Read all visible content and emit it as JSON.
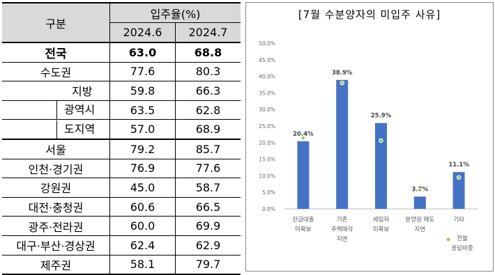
{
  "table": {
    "header": {
      "group": "구분",
      "rate": "입주율(%)",
      "col1": "2024.6",
      "col2": "2024.7"
    },
    "rows": [
      [
        "전국",
        "63.0",
        "68.8"
      ],
      [
        "수도권",
        "77.6",
        "80.3"
      ],
      [
        "지방",
        "59.8",
        "66.3"
      ],
      [
        "광역시",
        "63.5",
        "62.8"
      ],
      [
        "도지역",
        "57.0",
        "68.9"
      ],
      [
        "서울",
        "79.2",
        "85.7"
      ],
      [
        "인천·경기권",
        "76.9",
        "77.6"
      ],
      [
        "강원권",
        "45.0",
        "58.7"
      ],
      [
        "대전·충청권",
        "60.6",
        "66.5"
      ],
      [
        "광주·전라권",
        "60.0",
        "69.9"
      ],
      [
        "대구·부산·경상권",
        "62.4",
        "62.9"
      ],
      [
        "제주권",
        "58.1",
        "79.7"
      ]
    ]
  },
  "chart_data": {
    "type": "bar",
    "title": "[7월 수분양자의 미입주 사유]",
    "categories": [
      "잔금대출\n미확보",
      "기존\n주택매각\n지연",
      "세입자\n미확보",
      "분양권 매도\n지연",
      "기타"
    ],
    "values": [
      20.4,
      38.9,
      25.9,
      3.7,
      11.1
    ],
    "value_labels": [
      "20.4%",
      "38.9%",
      "25.9%",
      "3.7%",
      "11.1%"
    ],
    "color": "#4472c4",
    "markers": {
      "name": "전월\n응답비중",
      "color": "#92d050",
      "values": [
        21.4,
        38.0,
        20.6,
        5.7,
        9.5
      ]
    },
    "ylim": [
      0,
      50
    ],
    "yticks": [
      {
        "value": 0,
        "label": "0.0%"
      },
      {
        "value": 5,
        "label": "5.0%"
      },
      {
        "value": 10,
        "label": "10.0%"
      },
      {
        "value": 15,
        "label": "15.0%"
      },
      {
        "value": 20,
        "label": "20.0%"
      },
      {
        "value": 25,
        "label": "25.0%"
      },
      {
        "value": 30,
        "label": "30.0%"
      },
      {
        "value": 35,
        "label": "35.0%"
      },
      {
        "value": 40,
        "label": "40.0%"
      },
      {
        "value": 45,
        "label": "45.0%"
      },
      {
        "value": 50,
        "label": "50.0%"
      }
    ]
  }
}
